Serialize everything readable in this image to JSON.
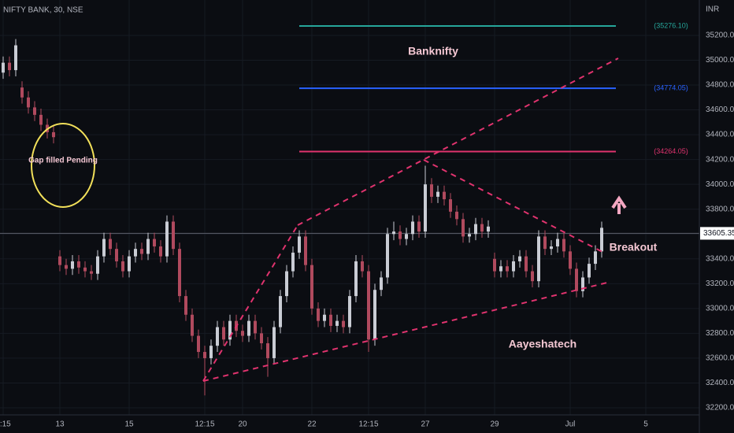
{
  "chart_data": {
    "type": "candlestick",
    "title": "NIFTY BANK, 30, NSE",
    "currency": "INR",
    "categories": [
      "2:15",
      null,
      null,
      null,
      null,
      null,
      null,
      null,
      null,
      "13",
      null,
      null,
      null,
      null,
      null,
      null,
      null,
      null,
      null,
      null,
      "15",
      null,
      null,
      null,
      null,
      null,
      null,
      null,
      null,
      null,
      null,
      null,
      "12:15",
      null,
      null,
      null,
      null,
      null,
      "20",
      null,
      null,
      null,
      null,
      null,
      null,
      null,
      null,
      null,
      null,
      "22",
      null,
      null,
      null,
      null,
      null,
      null,
      null,
      null,
      "12:15",
      null,
      null,
      null,
      null,
      null,
      null,
      null,
      null,
      "27",
      null,
      null,
      null,
      null,
      null,
      null,
      null,
      null,
      null,
      null,
      "29",
      null,
      null,
      null,
      null,
      null,
      null,
      null,
      null,
      null,
      null,
      null,
      "Jul",
      null,
      null,
      null,
      null,
      null,
      null,
      null,
      null,
      null,
      null,
      null,
      "5"
    ],
    "open": [
      34900,
      34980,
      34920,
      34780,
      34700,
      34620,
      34560,
      34480,
      34420,
      33420,
      33350,
      33320,
      33380,
      33330,
      33300,
      33280,
      33420,
      33560,
      33480,
      33380,
      33300,
      33420,
      33480,
      33440,
      33560,
      33500,
      33420,
      33700,
      33480,
      33100,
      32950,
      32780,
      32650,
      32600,
      32700,
      32850,
      32750,
      32900,
      32820,
      32780,
      32900,
      32800,
      32720,
      32600,
      32850,
      33100,
      33300,
      33450,
      33580,
      33350,
      33000,
      32900,
      32950,
      32860,
      32900,
      32850,
      33100,
      33380,
      33300,
      32750,
      33150,
      33250,
      33600,
      33620,
      33560,
      33600,
      33700,
      33620,
      34000,
      33900,
      33940,
      33880,
      33780,
      33720,
      33580,
      33600,
      33680,
      33620,
      33400,
      33300,
      33340,
      33300,
      33380,
      33420,
      33300,
      33220,
      33580,
      33480,
      33500,
      33560,
      33460,
      33320,
      33140,
      33250,
      33360,
      33460,
      null,
      null,
      null,
      null,
      null,
      null,
      null
    ],
    "high": [
      35030,
      35030,
      35170,
      34830,
      34750,
      34670,
      34610,
      34530,
      34470,
      33470,
      33400,
      33430,
      33430,
      33380,
      33350,
      33470,
      33610,
      33610,
      33530,
      33430,
      33470,
      33530,
      33530,
      33610,
      33610,
      33550,
      33750,
      33750,
      33530,
      33150,
      33000,
      32830,
      32700,
      32750,
      32900,
      32900,
      32950,
      32950,
      32870,
      32950,
      32950,
      32850,
      32770,
      32900,
      33150,
      33350,
      33500,
      33630,
      33630,
      33400,
      33050,
      33000,
      33000,
      32950,
      32950,
      33150,
      33430,
      33430,
      33350,
      33200,
      33300,
      33650,
      33700,
      33670,
      33650,
      33750,
      33750,
      34150,
      34050,
      33990,
      33990,
      33930,
      33830,
      33770,
      33650,
      33730,
      33730,
      33710,
      33450,
      33390,
      33390,
      33430,
      33470,
      33470,
      33350,
      33630,
      33630,
      33550,
      33610,
      33610,
      33510,
      33370,
      33300,
      33410,
      33510,
      33700,
      null,
      null,
      null,
      null,
      null,
      null,
      null
    ],
    "low": [
      34850,
      34870,
      34870,
      34650,
      34570,
      34510,
      34430,
      34370,
      34330,
      33300,
      33270,
      33270,
      33280,
      33250,
      33230,
      33230,
      33370,
      33430,
      33330,
      33250,
      33250,
      33370,
      33390,
      33390,
      33450,
      33370,
      33370,
      33430,
      33050,
      32900,
      32730,
      32600,
      32300,
      32550,
      32650,
      32700,
      32700,
      32770,
      32730,
      32730,
      32750,
      32670,
      32450,
      32550,
      32800,
      33050,
      33250,
      33400,
      33300,
      32950,
      32850,
      32850,
      32810,
      32810,
      32800,
      32800,
      33050,
      33250,
      32650,
      32700,
      33100,
      33200,
      33550,
      33510,
      33510,
      33550,
      33570,
      33570,
      33850,
      33850,
      33830,
      33730,
      33670,
      33530,
      33530,
      33550,
      33570,
      33570,
      33250,
      33250,
      33250,
      33250,
      33330,
      33250,
      33170,
      33170,
      33430,
      33430,
      33450,
      33410,
      33270,
      33090,
      33090,
      33200,
      33310,
      33410,
      null,
      null,
      null,
      null,
      null,
      null,
      null
    ],
    "close": [
      34980,
      34920,
      35120,
      34700,
      34620,
      34560,
      34480,
      34420,
      34380,
      33350,
      33320,
      33380,
      33330,
      33300,
      33280,
      33420,
      33560,
      33480,
      33380,
      33300,
      33420,
      33480,
      33440,
      33560,
      33500,
      33420,
      33700,
      33480,
      33100,
      32950,
      32780,
      32650,
      32600,
      32700,
      32850,
      32750,
      32900,
      32820,
      32780,
      32900,
      32800,
      32720,
      32600,
      32850,
      33100,
      33300,
      33450,
      33580,
      33350,
      33000,
      32900,
      32950,
      32860,
      32900,
      32850,
      33100,
      33380,
      33300,
      32750,
      33150,
      33250,
      33600,
      33620,
      33560,
      33600,
      33700,
      33620,
      34000,
      33900,
      33940,
      33880,
      33780,
      33720,
      33580,
      33600,
      33680,
      33620,
      33660,
      33300,
      33340,
      33300,
      33380,
      33420,
      33300,
      33220,
      33580,
      33480,
      33500,
      33560,
      33460,
      33320,
      33140,
      33250,
      33360,
      33460,
      33650,
      null,
      null,
      null,
      null,
      null,
      null,
      null
    ],
    "up_color": "#c9ccd4",
    "down_color": "#b04a5e",
    "ylim": [
      32143,
      35485
    ],
    "yticks": [
      {
        "value": 32200,
        "label": "32200.00"
      },
      {
        "value": 32400,
        "label": "32400.00"
      },
      {
        "value": 32600,
        "label": "32600.00"
      },
      {
        "value": 32800,
        "label": "32800.00"
      },
      {
        "value": 33000,
        "label": "33000.00"
      },
      {
        "value": 33200,
        "label": "33200.00"
      },
      {
        "value": 33400,
        "label": "33400.00"
      },
      {
        "value": 33600,
        "label": "33600.00"
      },
      {
        "value": 33800,
        "label": "33800.00"
      },
      {
        "value": 34000,
        "label": "34000.00"
      },
      {
        "value": 34200,
        "label": "34200.00"
      },
      {
        "value": 34400,
        "label": "34400.00"
      },
      {
        "value": 34600,
        "label": "34600.00"
      },
      {
        "value": 34800,
        "label": "34800.00"
      },
      {
        "value": 35000,
        "label": "35000.00"
      },
      {
        "value": 35200,
        "label": "35200.00"
      }
    ],
    "levels": [
      {
        "value": 35276.1,
        "label": "(35276.10)",
        "color": "#26a69a"
      },
      {
        "value": 34774.05,
        "label": "(34774.05)",
        "color": "#2962ff"
      },
      {
        "value": 34264.05,
        "label": "(34264.05)",
        "color": "#e0336e"
      }
    ],
    "last_price": {
      "value": 33605.35,
      "label": "33605.35"
    },
    "annotations": [
      "Gap filled Pending",
      "Banknifty",
      "Breakout",
      "Aayeshatech"
    ],
    "grid": true
  }
}
